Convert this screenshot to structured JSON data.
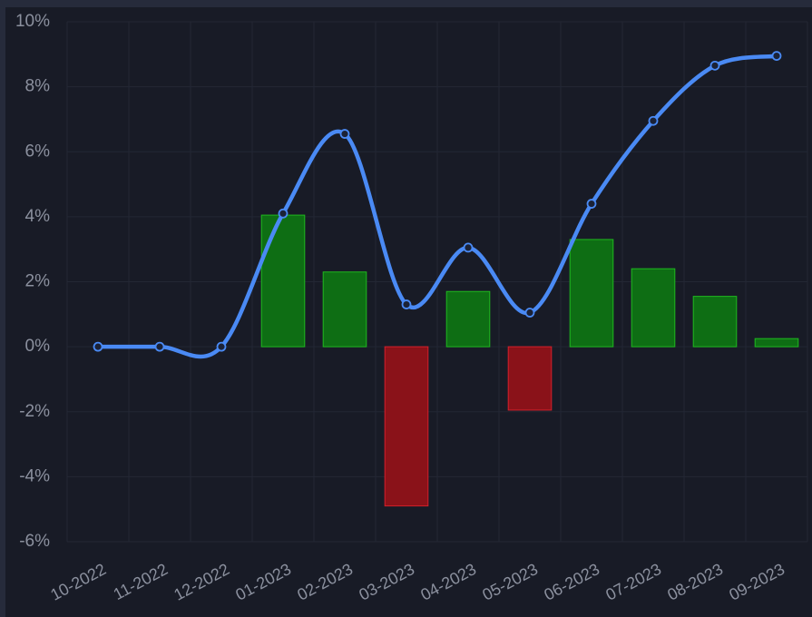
{
  "chart_data": {
    "type": "bar-line",
    "categories": [
      "10-2022",
      "11-2022",
      "12-2022",
      "01-2023",
      "02-2023",
      "03-2023",
      "04-2023",
      "05-2023",
      "06-2023",
      "07-2023",
      "08-2023",
      "09-2023"
    ],
    "series": [
      {
        "type": "bar",
        "positive_color": "#0e6e14",
        "positive_edge": "#1fb81f",
        "negative_color": "#8a1219",
        "negative_edge": "#d3202b",
        "values": [
          0,
          0,
          0,
          4.05,
          2.3,
          -4.9,
          1.7,
          -1.95,
          3.3,
          2.4,
          1.55,
          0.25
        ]
      },
      {
        "type": "line",
        "color": "#4a8af4",
        "values": [
          0,
          0,
          0,
          4.1,
          6.55,
          1.3,
          3.05,
          1.05,
          4.4,
          6.95,
          8.65,
          8.95
        ]
      }
    ],
    "ylim": [
      -6,
      10
    ],
    "yticks": [
      {
        "value": -6,
        "label": "-6%"
      },
      {
        "value": -4,
        "label": "-4%"
      },
      {
        "value": -2,
        "label": "-2%"
      },
      {
        "value": 0,
        "label": "0%"
      },
      {
        "value": 2,
        "label": "2%"
      },
      {
        "value": 4,
        "label": "4%"
      },
      {
        "value": 6,
        "label": "6%"
      },
      {
        "value": 8,
        "label": "8%"
      },
      {
        "value": 10,
        "label": "10%"
      }
    ],
    "grid": true
  }
}
